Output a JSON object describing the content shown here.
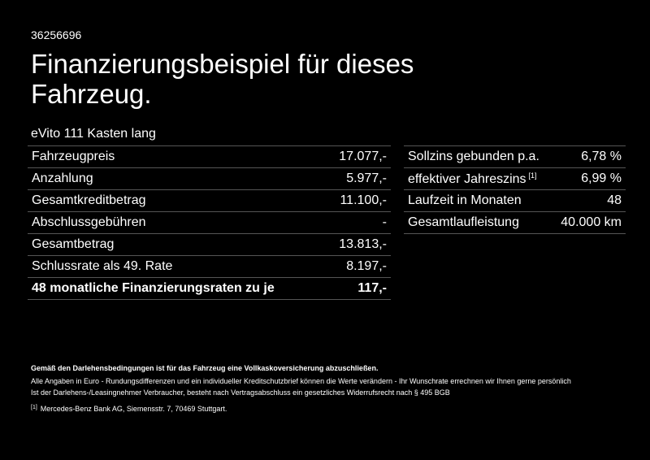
{
  "header": {
    "id": "36256696",
    "title": "Finanzierungsbeispiel für dieses Fahrzeug.",
    "model": "eVito 111 Kasten lang"
  },
  "left_table": {
    "rows": [
      [
        "Fahrzeugpreis",
        "17.077,-"
      ],
      [
        "Anzahlung",
        "5.977,-"
      ],
      [
        "Gesamtkreditbetrag",
        "11.100,-"
      ],
      [
        "Abschlussgebühren",
        "-"
      ],
      [
        "Gesamtbetrag",
        "13.813,-"
      ],
      [
        "Schlussrate als 49. Rate",
        "8.197,-"
      ],
      [
        "48 monatliche Finanzierungsraten zu je",
        "117,-"
      ]
    ]
  },
  "right_table": {
    "rows": [
      [
        "Sollzins gebunden p.a.",
        "6,78 %"
      ],
      [
        "effektiver Jahreszins",
        "6,99 %"
      ],
      [
        "Laufzeit in Monaten",
        "48"
      ],
      [
        "Gesamtlaufleistung",
        "40.000 km"
      ]
    ],
    "note": "[1]"
  },
  "footer": {
    "notice": "Gemäß den Darlehensbedingungen ist für das Fahrzeug eine Vollkaskoversicherung abzuschließen.",
    "lines": [
      "Alle Angaben in Euro - Rundungsdifferenzen und ein individueller Kreditschutzbrief können die Werte verändern - Ihr Wunschrate errechnen wir Ihnen gerne persönlich",
      "Ist der Darlehens-/Leasingnehmer Verbraucher, besteht nach Vertragsabschluss ein gesetzliches Widerrufsrecht nach § 495 BGB"
    ],
    "footnote": {
      "marker": "[1]",
      "text": "Mercedes-Benz Bank AG, Siemensstr. 7, 70469 Stuttgart."
    }
  }
}
